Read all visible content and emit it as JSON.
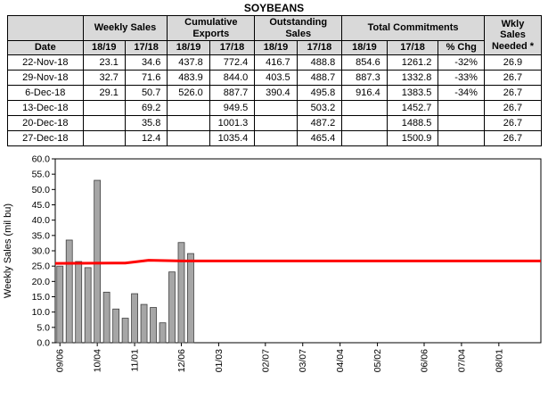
{
  "title": "SOYBEANS",
  "table": {
    "groups": {
      "date": "Date",
      "weekly": "Weekly Sales",
      "cumulative": "Cumulative Exports",
      "outstanding": "Outstanding Sales",
      "total": "Total Commitments",
      "needed": "Wkly\nSales\nNeeded *"
    },
    "subheaders": [
      "18/19",
      "17/18",
      "18/19",
      "17/18",
      "18/19",
      "17/18",
      "18/19",
      "17/18",
      "% Chg"
    ],
    "rows": [
      {
        "date": "22-Nov-18",
        "cells": [
          "23.1",
          "34.6",
          "437.8",
          "772.4",
          "416.7",
          "488.8",
          "854.6",
          "1261.2",
          "-32%",
          "26.9"
        ]
      },
      {
        "date": "29-Nov-18",
        "cells": [
          "32.7",
          "71.6",
          "483.9",
          "844.0",
          "403.5",
          "488.7",
          "887.3",
          "1332.8",
          "-33%",
          "26.7"
        ]
      },
      {
        "date": "6-Dec-18",
        "cells": [
          "29.1",
          "50.7",
          "526.0",
          "887.7",
          "390.4",
          "495.8",
          "916.4",
          "1383.5",
          "-34%",
          "26.7"
        ]
      },
      {
        "date": "13-Dec-18",
        "cells": [
          "",
          "69.2",
          "",
          "949.5",
          "",
          "503.2",
          "",
          "1452.7",
          "",
          "26.7"
        ]
      },
      {
        "date": "20-Dec-18",
        "cells": [
          "",
          "35.8",
          "",
          "1001.3",
          "",
          "487.2",
          "",
          "1488.5",
          "",
          "26.7"
        ]
      },
      {
        "date": "27-Dec-18",
        "cells": [
          "",
          "12.4",
          "",
          "1035.4",
          "",
          "465.4",
          "",
          "1500.9",
          "",
          "26.7"
        ]
      }
    ]
  },
  "chart_data": {
    "type": "bar",
    "title": "",
    "xlabel": "",
    "ylabel": "Weekly Sales (mil bu)",
    "ylim": [
      0,
      60
    ],
    "ytick_step": 5,
    "grid": false,
    "legend": "none",
    "x_tick_labels": [
      "09/06",
      "10/04",
      "11/01",
      "12/06",
      "01/03",
      "02/07",
      "03/07",
      "04/04",
      "05/02",
      "06/06",
      "07/04",
      "08/01"
    ],
    "x_tick_weeks": [
      0,
      4,
      8,
      13,
      17,
      22,
      26,
      30,
      34,
      39,
      43,
      47
    ],
    "total_weeks": 52,
    "bars": {
      "name": "Weekly Sales 18/19",
      "color": "#a6a6a6",
      "week_values": [
        [
          0,
          25.0
        ],
        [
          1,
          33.5
        ],
        [
          2,
          26.5
        ],
        [
          3,
          24.5
        ],
        [
          4,
          53.0
        ],
        [
          5,
          16.5
        ],
        [
          6,
          11.0
        ],
        [
          7,
          8.0
        ],
        [
          8,
          16.0
        ],
        [
          9,
          12.5
        ],
        [
          10,
          11.5
        ],
        [
          11,
          6.5
        ],
        [
          12,
          23.1
        ],
        [
          13,
          32.7
        ],
        [
          14,
          29.1
        ]
      ]
    },
    "line": {
      "name": "Wkly Sales Needed",
      "color": "#ff0000",
      "points": [
        [
          -0.5,
          25.9
        ],
        [
          7,
          26.0
        ],
        [
          9.5,
          26.9
        ],
        [
          13,
          26.7
        ],
        [
          51.5,
          26.7
        ]
      ]
    }
  }
}
